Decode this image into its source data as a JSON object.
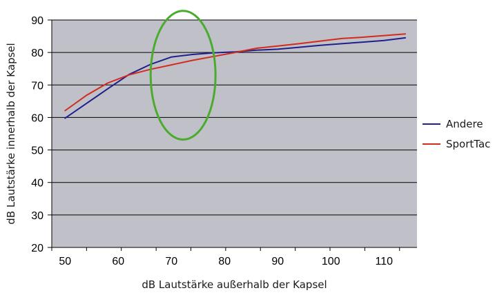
{
  "chart_data": {
    "type": "line",
    "xlabel": "dB Lautstärke außerhalb der Kapsel",
    "ylabel": "dB Lautstärke innerhalb der Kapsel",
    "ylim": [
      20,
      90
    ],
    "y_ticks": [
      20,
      30,
      40,
      50,
      60,
      70,
      80,
      90
    ],
    "xlim": [
      47.5,
      116.2
    ],
    "x_tick_labels": [
      50,
      60,
      70,
      80,
      90,
      100,
      110
    ],
    "x_tick_marks": [
      47.5,
      54.04,
      60.58,
      67.13,
      73.67,
      80.21,
      86.75,
      93.3,
      99.84,
      106.38,
      112.92
    ],
    "grid": true,
    "plot_background": "#c0c0c8",
    "gridline_color": "#000000",
    "legend_position": "right",
    "series": [
      {
        "name": "Andere",
        "color": "#1f1f8c",
        "x": [
          50,
          54,
          58,
          62,
          66,
          70,
          74,
          78,
          82,
          86,
          90,
          94,
          98,
          102,
          106,
          110,
          114
        ],
        "values": [
          59.8,
          64.3,
          68.8,
          73.2,
          76.3,
          78.6,
          79.4,
          79.9,
          80.2,
          80.7,
          81.0,
          81.6,
          82.2,
          82.7,
          83.2,
          83.7,
          84.5
        ]
      },
      {
        "name": "SportTac",
        "color": "#d42a1e",
        "x": [
          50,
          54,
          58,
          62,
          66,
          70,
          74,
          78,
          82,
          86,
          90,
          94,
          98,
          102,
          106,
          110,
          114
        ],
        "values": [
          62.1,
          66.8,
          70.6,
          73.1,
          74.8,
          76.2,
          77.6,
          78.8,
          80.0,
          81.3,
          82.0,
          82.7,
          83.5,
          84.3,
          84.7,
          85.2,
          85.7
        ]
      }
    ],
    "annotation": {
      "type": "circle",
      "color": "#4aab2d",
      "center_x": 72.2,
      "center_y": 73,
      "radius_x_units": 6.1,
      "radius_y_units": 19.8
    }
  }
}
